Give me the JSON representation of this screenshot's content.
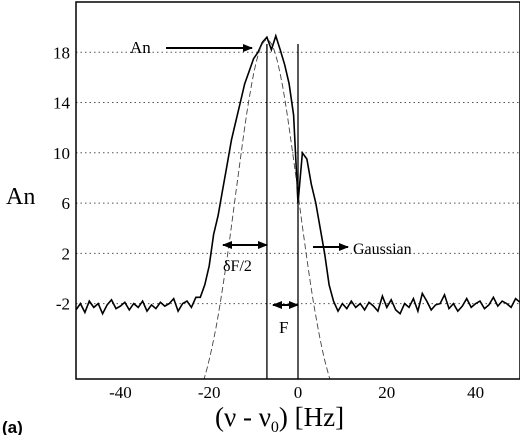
{
  "chart_data": {
    "type": "line",
    "title": "",
    "panel_label": "(a)",
    "xlabel_main": "(ν - ν",
    "xlabel_sub": "0",
    "xlabel_tail": ") [Hz]",
    "ylabel": "An",
    "xlim": [
      -50,
      50
    ],
    "ylim": [
      -8,
      22
    ],
    "x_ticks": [
      -40,
      -20,
      0,
      20,
      40
    ],
    "y_ticks": [
      -2,
      2,
      6,
      10,
      14,
      18
    ],
    "grid": "dotted-horizontal",
    "series": [
      {
        "style": "solid",
        "x": [
          -50,
          -49,
          -48,
          -47,
          -46,
          -45,
          -44,
          -43,
          -42,
          -41,
          -40,
          -39,
          -38,
          -37,
          -36,
          -35,
          -34,
          -33,
          -32,
          -31,
          -30,
          -29,
          -28,
          -27,
          -26,
          -25,
          -24,
          -23,
          -22,
          -21,
          -20,
          -19,
          -18,
          -17,
          -16,
          -15,
          -14,
          -13,
          -12,
          -11,
          -10,
          -9,
          -8,
          -7,
          -6,
          -5,
          -4,
          -3,
          -2,
          -1,
          0,
          1,
          2,
          3,
          4,
          5,
          6,
          7,
          8,
          9,
          10,
          11,
          12,
          13,
          14,
          15,
          16,
          17,
          18,
          19,
          20,
          21,
          22,
          23,
          24,
          25,
          26,
          27,
          28,
          29,
          30,
          31,
          32,
          33,
          34,
          35,
          36,
          37,
          38,
          39,
          40,
          41,
          42,
          43,
          44,
          45,
          46,
          47,
          48,
          49,
          50
        ],
        "y": [
          -2.5,
          -2.0,
          -2.7,
          -1.8,
          -2.3,
          -2.0,
          -2.8,
          -2.1,
          -1.7,
          -2.4,
          -2.2,
          -1.9,
          -2.5,
          -2.0,
          -2.3,
          -1.8,
          -2.6,
          -2.1,
          -2.4,
          -1.9,
          -2.2,
          -2.0,
          -1.6,
          -2.6,
          -2.0,
          -1.8,
          -2.3,
          -1.5,
          -1.5,
          -0.5,
          1.0,
          3.5,
          5.0,
          7.0,
          9.0,
          11.0,
          12.5,
          14.0,
          15.5,
          16.5,
          17.5,
          18.0,
          18.8,
          19.2,
          18.2,
          19.3,
          18.2,
          17.0,
          15.5,
          13.0,
          6.0,
          10.0,
          9.5,
          7.5,
          6.0,
          4.0,
          2.0,
          -0.5,
          -1.8,
          -2.6,
          -2.0,
          -2.4,
          -1.8,
          -2.3,
          -2.0,
          -2.5,
          -1.9,
          -2.2,
          -2.6,
          -1.4,
          -2.3,
          -1.7,
          -2.5,
          -2.8,
          -2.0,
          -2.3,
          -1.6,
          -2.6,
          -1.2,
          -1.8,
          -2.5,
          -2.1,
          -2.0,
          -1.3,
          -2.4,
          -2.0,
          -2.6,
          -2.2,
          -1.6,
          -2.3,
          -2.0,
          -1.8,
          -2.4,
          -2.1,
          -1.5,
          -2.2,
          -1.8,
          -2.0,
          -2.3,
          -1.6,
          -1.9
        ]
      },
      {
        "style": "dashed",
        "gaussian": {
          "amplitude": 19.0,
          "center": -7.0,
          "sigma": 7.0,
          "offset": -12.0
        }
      }
    ],
    "vertical_lines_x": [
      -7,
      0
    ],
    "annotations": {
      "an_label": "An",
      "gaussian_label": "Gaussian",
      "halfwidth_label": "δF/2",
      "f_label": "F"
    }
  }
}
